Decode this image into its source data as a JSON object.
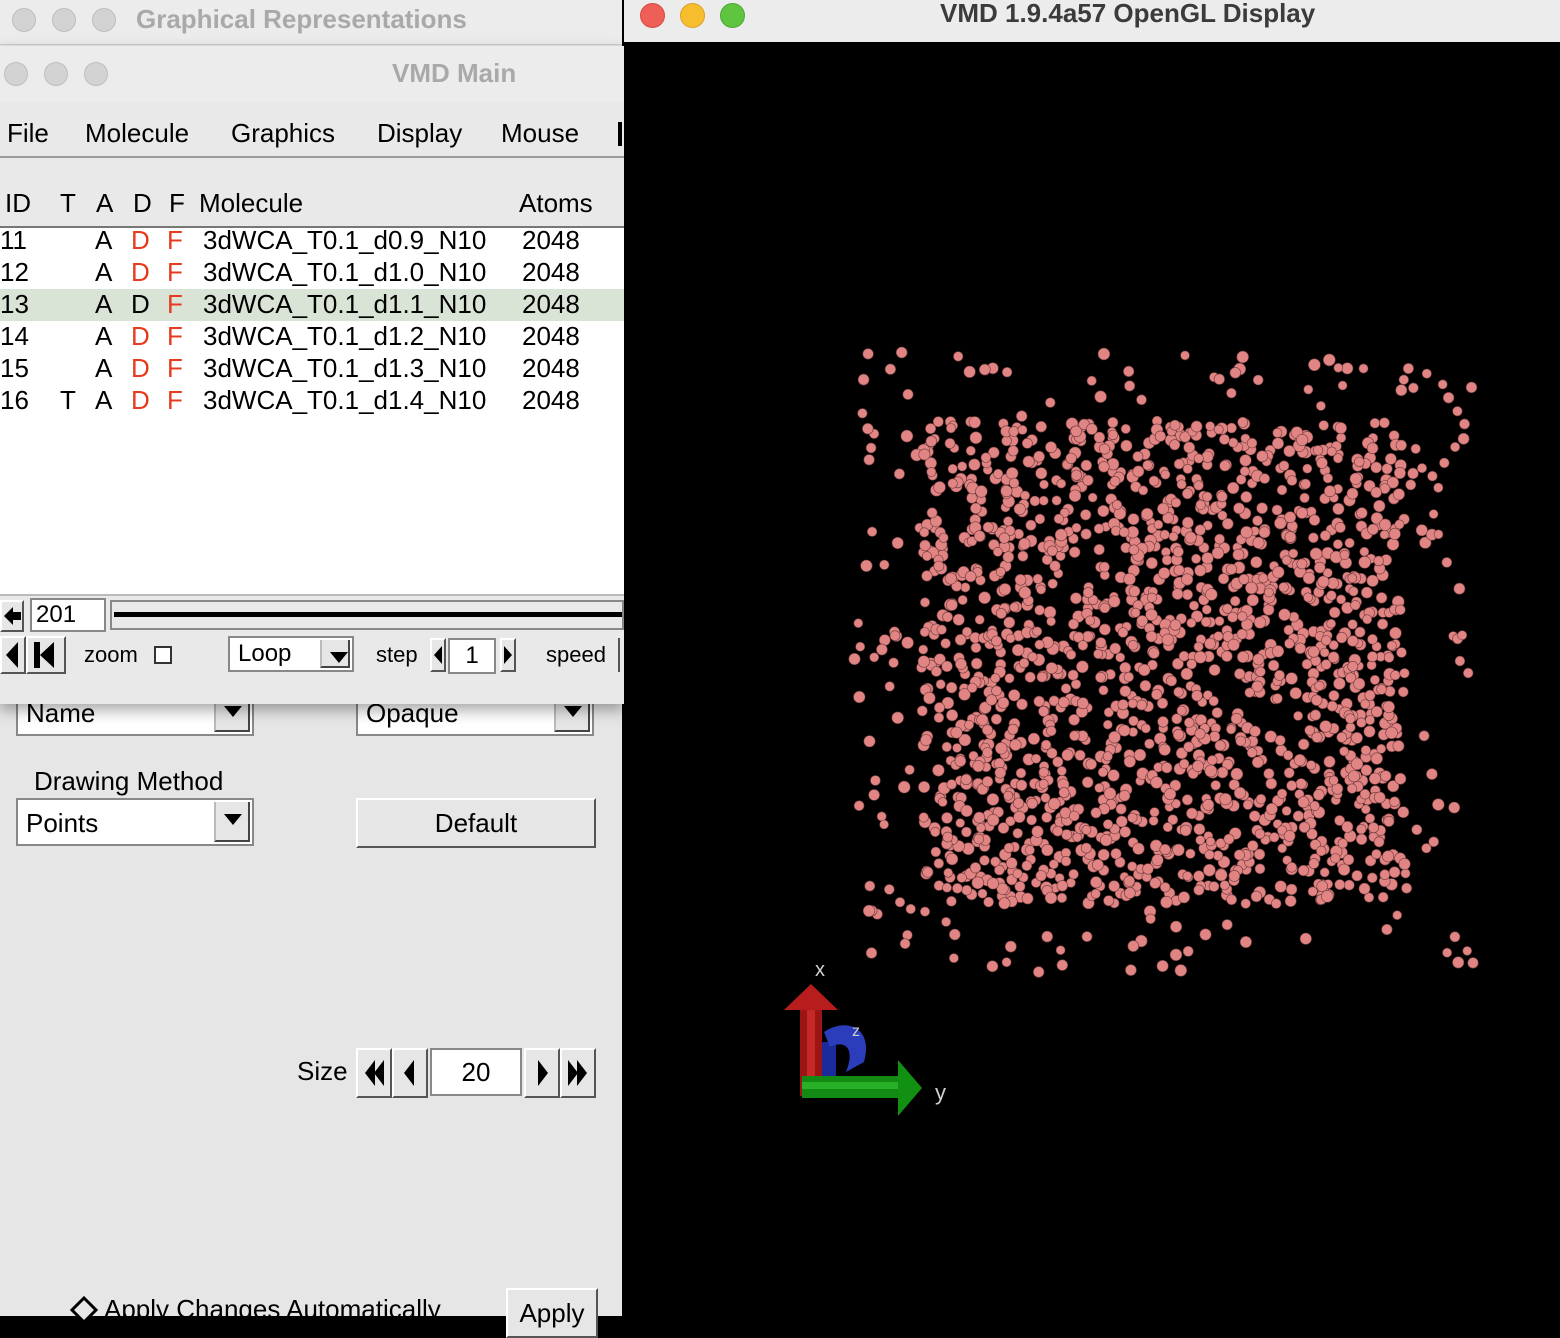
{
  "reps_window": {
    "title": "Graphical Representations",
    "coloring_method_value": "Name",
    "material_value": "Opaque",
    "drawing_method_label": "Drawing Method",
    "drawing_method_value": "Points",
    "default_button": "Default",
    "size_label": "Size",
    "size_value": "20",
    "apply_auto_label": "Apply Changes Automatically",
    "apply_button": "Apply"
  },
  "main_window": {
    "title": "VMD Main",
    "menu": [
      "File",
      "Molecule",
      "Graphics",
      "Display",
      "Mouse"
    ],
    "columns": {
      "id": "ID",
      "t": "T",
      "a": "A",
      "d": "D",
      "f": "F",
      "molecule": "Molecule",
      "atoms": "Atoms"
    },
    "molecules": [
      {
        "id": "11",
        "t": "",
        "a": "A",
        "d": "D",
        "f": "F",
        "name": "3dWCA_T0.1_d0.9_N10",
        "atoms": "2048",
        "d_red": true,
        "f_red": true,
        "selected": false
      },
      {
        "id": "12",
        "t": "",
        "a": "A",
        "d": "D",
        "f": "F",
        "name": "3dWCA_T0.1_d1.0_N10",
        "atoms": "2048",
        "d_red": true,
        "f_red": true,
        "selected": false
      },
      {
        "id": "13",
        "t": "",
        "a": "A",
        "d": "D",
        "f": "F",
        "name": "3dWCA_T0.1_d1.1_N10",
        "atoms": "2048",
        "d_red": false,
        "f_red": true,
        "selected": true
      },
      {
        "id": "14",
        "t": "",
        "a": "A",
        "d": "D",
        "f": "F",
        "name": "3dWCA_T0.1_d1.2_N10",
        "atoms": "2048",
        "d_red": true,
        "f_red": true,
        "selected": false
      },
      {
        "id": "15",
        "t": "",
        "a": "A",
        "d": "D",
        "f": "F",
        "name": "3dWCA_T0.1_d1.3_N10",
        "atoms": "2048",
        "d_red": true,
        "f_red": true,
        "selected": false
      },
      {
        "id": "16",
        "t": "T",
        "a": "A",
        "d": "D",
        "f": "F",
        "name": "3dWCA_T0.1_d1.4_N10",
        "atoms": "2048",
        "d_red": true,
        "f_red": true,
        "selected": false
      }
    ],
    "frame_value": "201",
    "zoom_label": "zoom",
    "loop_value": "Loop",
    "step_label": "step",
    "step_value": "1",
    "speed_label": "speed"
  },
  "gl_window": {
    "title": "VMD 1.9.4a57 OpenGL Display",
    "axis_x": "x",
    "axis_y": "y",
    "axis_z": "z",
    "atom_color": "#e08484",
    "background": "#000000"
  },
  "colors": {
    "red_flag": "#e53a1e",
    "selected_row": "#d9e4d6",
    "mac_close": "#ee5f57",
    "mac_min": "#f6bd2f",
    "mac_max": "#5fc43f"
  }
}
